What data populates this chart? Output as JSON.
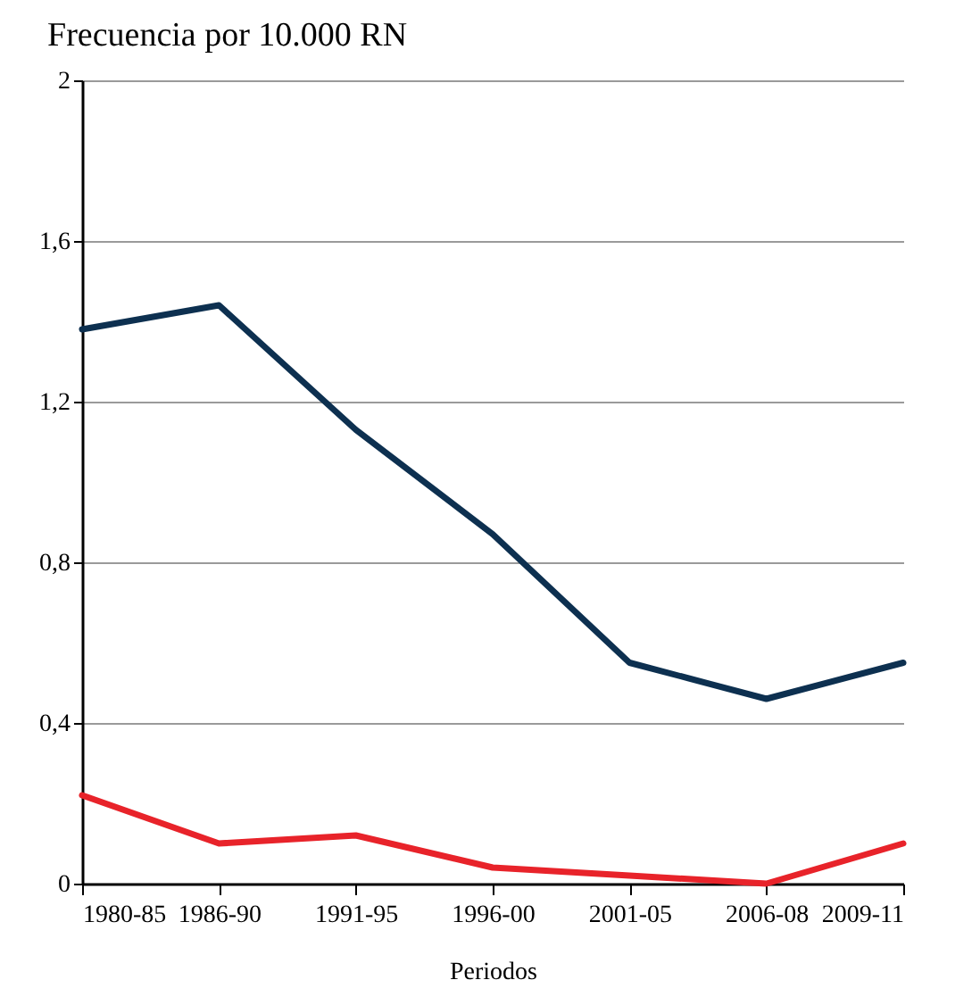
{
  "chart_data": {
    "type": "line",
    "ylabel": "Frecuencia por 10.000 RN",
    "xlabel": "Periodos",
    "categories": [
      "1980-85",
      "1986-90",
      "1991-95",
      "1996-00",
      "2001-05",
      "2006-08",
      "2009-11"
    ],
    "series": [
      {
        "color": "#0d3050",
        "values": [
          1.38,
          1.44,
          1.13,
          0.87,
          0.55,
          0.46,
          0.55
        ]
      },
      {
        "color": "#e8232a",
        "values": [
          0.22,
          0.1,
          0.12,
          0.04,
          0.02,
          0,
          0.1
        ]
      }
    ],
    "ylim": [
      0,
      2
    ],
    "yticks": [
      0,
      {
        "value": 0.4,
        "label": "0,4"
      },
      {
        "value": 0.8,
        "label": "0,8"
      },
      {
        "value": 1.2,
        "label": "1,2"
      },
      {
        "value": 1.6,
        "label": "1,6"
      },
      2
    ],
    "grid": "y",
    "legend": false,
    "marker": "none",
    "line_style": "solid"
  }
}
